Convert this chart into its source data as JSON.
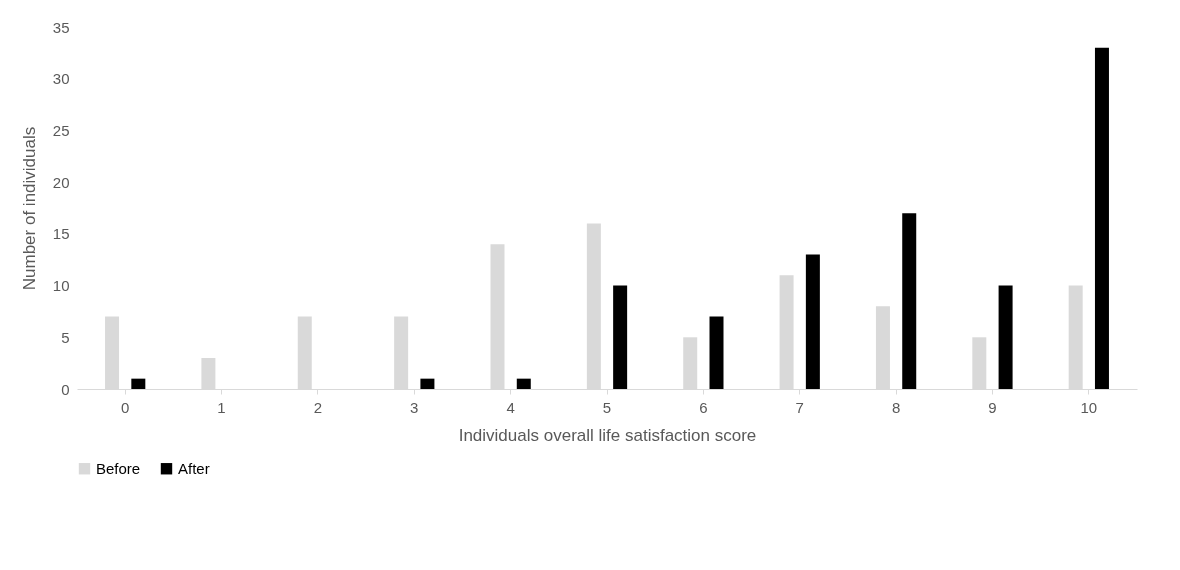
{
  "chart_data": {
    "type": "bar",
    "xlabel": "Individuals overall life satisfaction score",
    "ylabel": "Number of individuals",
    "categories": [
      "0",
      "1",
      "2",
      "3",
      "4",
      "5",
      "6",
      "7",
      "8",
      "9",
      "10"
    ],
    "series": [
      {
        "name": "Before",
        "color": "#d9d9d9",
        "values": [
          7,
          3,
          7,
          7,
          14,
          16,
          5,
          11,
          8,
          5,
          10
        ]
      },
      {
        "name": "After",
        "color": "#000000",
        "values": [
          1,
          0,
          0,
          1,
          1,
          10,
          7,
          13,
          17,
          10,
          33
        ]
      }
    ],
    "ylim": [
      0,
      35
    ],
    "yticks": [
      0,
      5,
      10,
      15,
      20,
      25,
      30,
      35
    ],
    "grid": false,
    "legend": "bottom"
  }
}
